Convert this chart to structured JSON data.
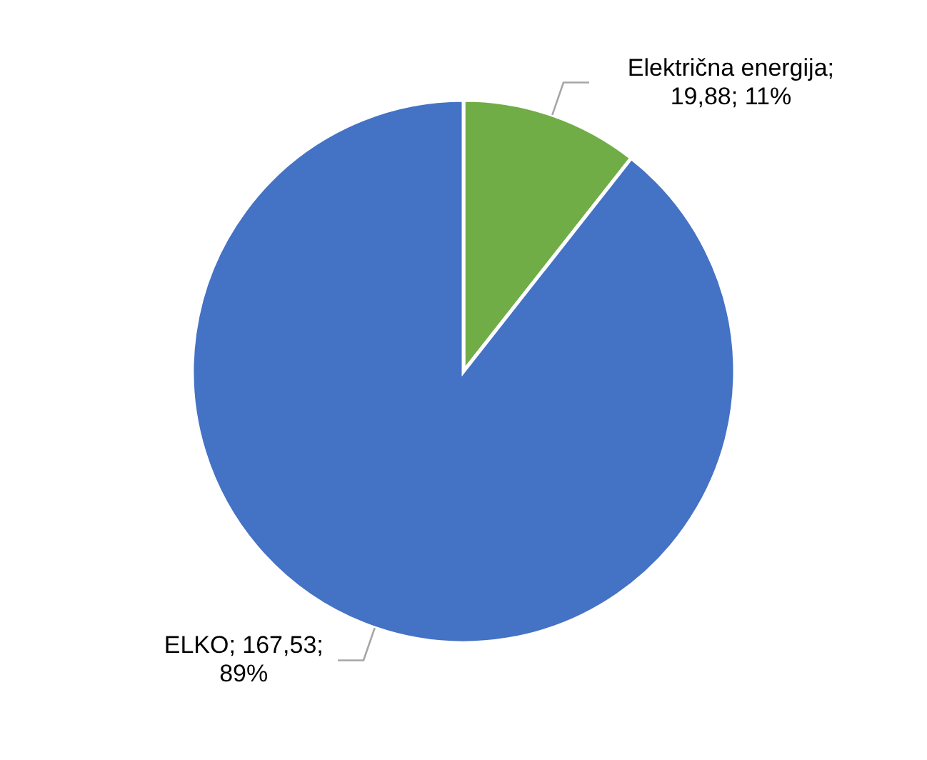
{
  "chart_data": {
    "type": "pie",
    "categories": [
      "Električna energija",
      "ELKO"
    ],
    "values": [
      19.88,
      167.53
    ],
    "colors": [
      "#70ad47",
      "#4472c4"
    ],
    "value_labels": [
      "; 19,88; 11%",
      "; 167,53; 89%"
    ]
  }
}
